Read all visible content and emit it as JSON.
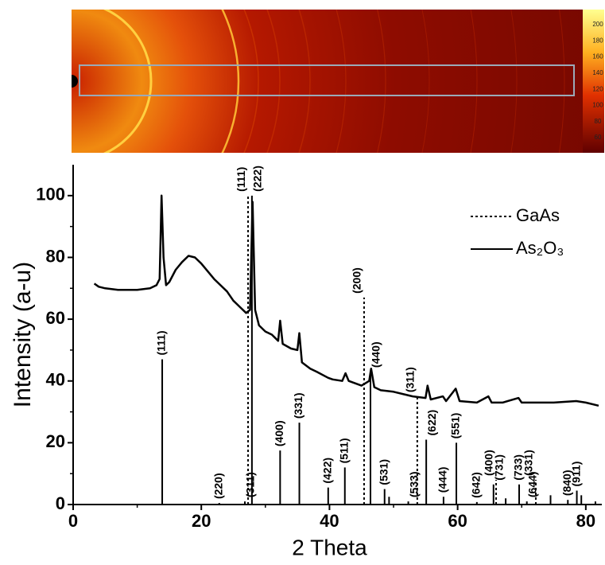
{
  "chart_data": {
    "type": "line",
    "x_label": "2 Theta",
    "y_label": "Intensity (a-u)",
    "xlim": [
      0,
      82.5
    ],
    "ylim": [
      0,
      110
    ],
    "xticks": [
      0,
      20,
      40,
      60,
      80
    ],
    "yticks": [
      0,
      20,
      40,
      60,
      80,
      100
    ],
    "xminorticks": [
      10,
      30,
      50,
      70
    ],
    "yminorticks": [
      10,
      30,
      50,
      70,
      90
    ],
    "legend": "upper right",
    "colorbar": {
      "ticks": [
        200,
        180,
        160,
        140,
        120,
        100,
        80,
        60
      ]
    },
    "series": [
      {
        "color": "#000000",
        "style": "solid",
        "x": [
          3.3,
          4,
          5,
          7,
          10,
          12,
          13,
          13.5,
          13.8,
          14.1,
          14.5,
          15,
          16,
          17,
          18,
          19,
          20,
          22,
          24,
          25,
          26,
          27,
          27.6,
          28.0,
          28.4,
          29,
          30,
          31,
          32,
          32.3,
          32.7,
          34,
          35,
          35.3,
          35.7,
          37,
          38,
          39.8,
          40.5,
          42,
          42.5,
          43,
          45,
          46.2,
          46.5,
          47,
          48,
          50,
          53,
          55,
          55.3,
          55.8,
          57.7,
          58.2,
          59.7,
          60.3,
          63,
          64.8,
          65.3,
          67,
          69.5,
          70,
          72,
          75,
          78.5,
          80,
          82
        ],
        "values": [
          71.5,
          70.5,
          70,
          69.5,
          69.5,
          70,
          71,
          73,
          100,
          80,
          71,
          72,
          76,
          78.5,
          80.5,
          80,
          78,
          73,
          69,
          66,
          64,
          62,
          63,
          98,
          63,
          58,
          56,
          55,
          53,
          59.5,
          52,
          50.5,
          50,
          55.5,
          46,
          44,
          43,
          41,
          40.5,
          40,
          42.5,
          40,
          38.5,
          40,
          44,
          38,
          37,
          36.5,
          35,
          34.5,
          38.5,
          34,
          35,
          33.5,
          37.5,
          33.5,
          33,
          35,
          33,
          33,
          34.5,
          33,
          33,
          33,
          33.5,
          33,
          32
        ]
      },
      {
        "name": "GaAs",
        "color": "#000000",
        "style": "dashed",
        "sticks": true,
        "x": [
          27.3,
          45.4,
          53.7,
          66.0,
          72.2
        ],
        "values": [
          100,
          67,
          35,
          8,
          8
        ],
        "labels": [
          "(111)",
          "(200)",
          "(311)",
          "(400)",
          "(331)"
        ]
      },
      {
        "name": "As₂O₃",
        "color": "#000000",
        "style": "solid",
        "sticks": true,
        "x": [
          13.9,
          22.8,
          26.8,
          27.9,
          32.3,
          35.3,
          39.8,
          42.4,
          46.4,
          48.6,
          49.3,
          52.3,
          55.1,
          57.8,
          59.8,
          63.0,
          65.6,
          67.5,
          69.6,
          70.8,
          74.5,
          77.2,
          78.6,
          79.3,
          81.5
        ],
        "values": [
          47,
          0.5,
          1,
          100,
          17.5,
          26.5,
          5.5,
          12,
          43,
          5,
          2.5,
          1,
          21,
          2.5,
          20,
          0.8,
          6.5,
          2,
          6.5,
          1,
          3,
          1.5,
          4.5,
          3,
          1
        ],
        "labels": [
          "(111)",
          "(220)",
          "(311)",
          "(222)",
          "(400)",
          "(331)",
          "(422)",
          "(511)",
          "(440)",
          "(531)",
          null,
          "(533)",
          "(622)",
          "(444)",
          "(551)",
          "(642)",
          "(731)",
          null,
          "(733)",
          "(644)",
          null,
          "(840)",
          "(911)",
          null,
          null
        ]
      }
    ]
  }
}
